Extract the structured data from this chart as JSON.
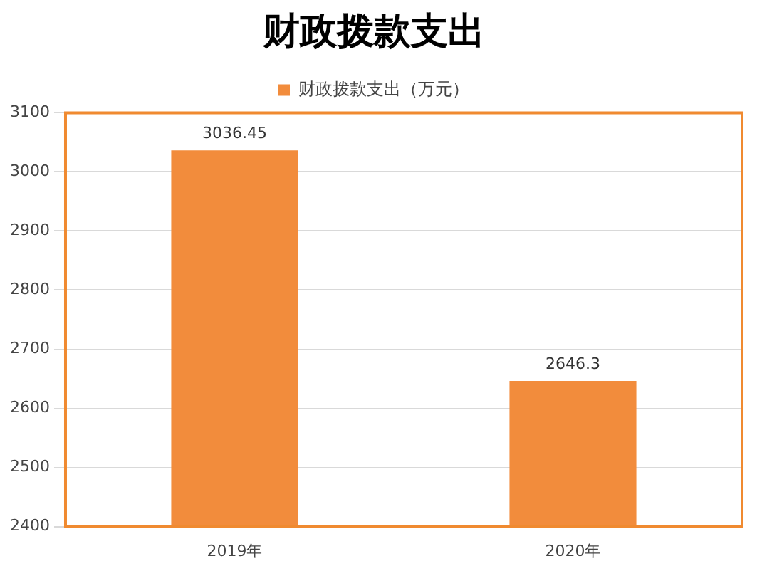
{
  "chart_data": {
    "type": "bar",
    "title": "财政拨款支出",
    "categories": [
      "2019年",
      "2020年"
    ],
    "series": [
      {
        "name": "财政拨款支出（万元）",
        "color": "#f28c3c",
        "values": [
          3036.45,
          2646.3
        ]
      }
    ],
    "ylim": [
      2400,
      3100
    ],
    "yticks": [
      2400,
      2500,
      2600,
      2700,
      2800,
      2900,
      3000,
      3100
    ],
    "grid": "y",
    "legend": "top",
    "data_labels": true
  }
}
